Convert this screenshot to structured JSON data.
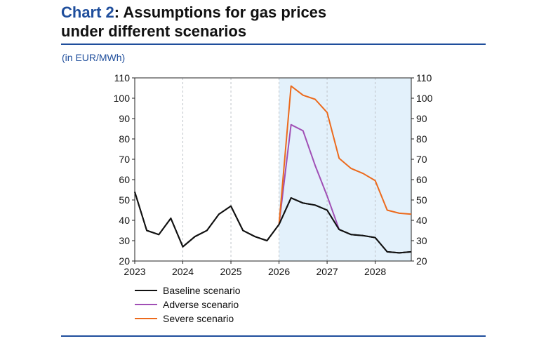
{
  "header": {
    "title_number": "Chart 2",
    "title_rest": ": Assumptions for gas prices",
    "title_line2": "under different scenarios",
    "unit": "(in EUR/MWh)"
  },
  "colors": {
    "brand": "#1f4e9c",
    "shade": "#e3f1fb",
    "baseline": "#111111",
    "adverse": "#a04fb5",
    "severe": "#ec6a1c"
  },
  "chart_data": {
    "type": "line",
    "xlim": [
      2023,
      2028.75
    ],
    "ylim": [
      20,
      110
    ],
    "y_ticks": [
      20,
      30,
      40,
      50,
      60,
      70,
      80,
      90,
      100,
      110
    ],
    "x_ticks": [
      2023,
      2024,
      2025,
      2026,
      2027,
      2028
    ],
    "x_tick_labels": [
      "2023",
      "2024",
      "2025",
      "2026",
      "2027",
      "2028"
    ],
    "shaded_range": [
      2026,
      2028.75
    ],
    "grid": "vertical",
    "legend": "bottom",
    "series": [
      {
        "name": "Baseline scenario",
        "color": "#111111",
        "x": [
          2023,
          2023.25,
          2023.5,
          2023.75,
          2024,
          2024.25,
          2024.5,
          2024.75,
          2025,
          2025.25,
          2025.5,
          2025.75,
          2026,
          2026.25,
          2026.5,
          2026.75,
          2027,
          2027.25,
          2027.5,
          2027.75,
          2028,
          2028.25,
          2028.5,
          2028.75
        ],
        "y": [
          54,
          35,
          33,
          41,
          27,
          32,
          35,
          43,
          47,
          35,
          32,
          30,
          38,
          51,
          48.5,
          47.5,
          45,
          35.5,
          33,
          32.5,
          31.5,
          24.5,
          24,
          24.5
        ]
      },
      {
        "name": "Adverse scenario",
        "color": "#a04fb5",
        "x": [
          2026,
          2026.25,
          2026.5,
          2026.75,
          2027,
          2027.25
        ],
        "y": [
          38,
          87,
          84,
          67,
          52,
          35.5
        ]
      },
      {
        "name": "Severe scenario",
        "color": "#ec6a1c",
        "x": [
          2026,
          2026.25,
          2026.5,
          2026.75,
          2027,
          2027.25,
          2027.5,
          2027.75,
          2028,
          2028.25,
          2028.5,
          2028.75
        ],
        "y": [
          38,
          106,
          101.5,
          99.5,
          93,
          70.5,
          65.5,
          63,
          59.5,
          45,
          43.5,
          43
        ]
      }
    ]
  }
}
